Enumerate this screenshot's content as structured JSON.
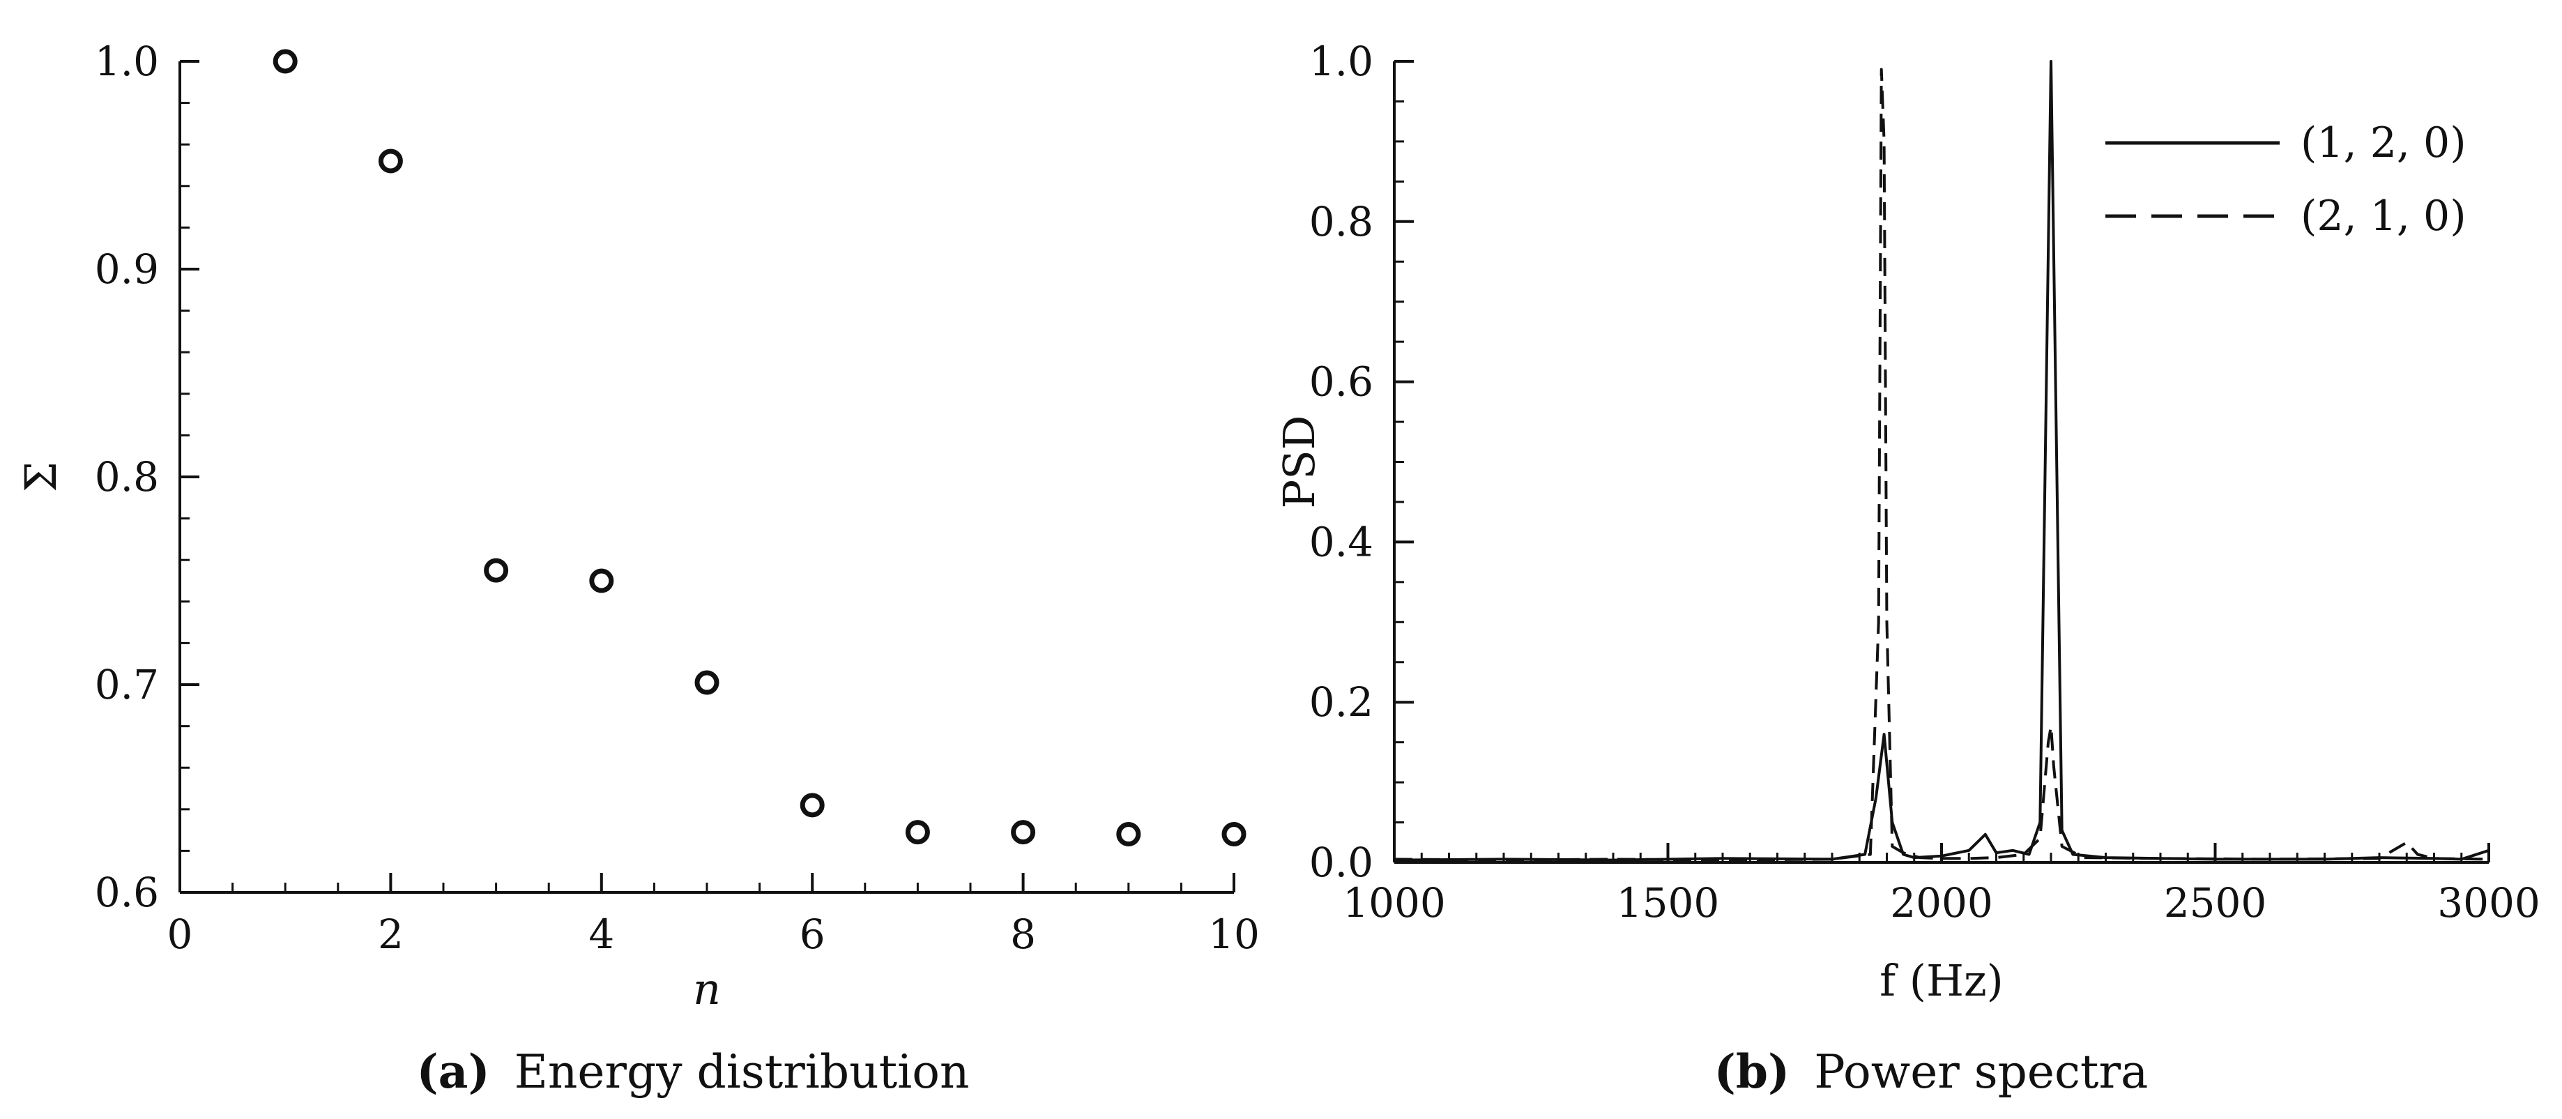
{
  "chart_data": [
    {
      "type": "scatter",
      "caption_label": "(a)",
      "caption_text": "Energy distribution",
      "xlabel": "n",
      "ylabel": "Σ",
      "xlim": [
        0,
        10
      ],
      "ylim": [
        0.6,
        1.0
      ],
      "xticks": [
        0,
        2,
        4,
        6,
        8,
        10
      ],
      "xtick_labels": [
        "0",
        "2",
        "4",
        "6",
        "8",
        "10"
      ],
      "yticks": [
        0.6,
        0.7,
        0.8,
        0.9,
        1.0
      ],
      "ytick_labels": [
        "0.6",
        "0.7",
        "0.8",
        "0.9",
        "1.0"
      ],
      "grid": false,
      "marker": "open-circle",
      "x": [
        1,
        2,
        3,
        4,
        5,
        6,
        7,
        8,
        9,
        10
      ],
      "y": [
        1.0,
        0.952,
        0.755,
        0.75,
        0.701,
        0.642,
        0.629,
        0.629,
        0.628,
        0.628
      ]
    },
    {
      "type": "line",
      "caption_label": "(b)",
      "caption_text": "Power spectra",
      "xlabel": "f (Hz)",
      "ylabel": "PSD",
      "xlim": [
        1000,
        3000
      ],
      "ylim": [
        0.0,
        1.0
      ],
      "xticks": [
        1000,
        1500,
        2000,
        2500,
        3000
      ],
      "xtick_labels": [
        "1000",
        "1500",
        "2000",
        "2500",
        "3000"
      ],
      "yticks": [
        0.0,
        0.2,
        0.4,
        0.6,
        0.8,
        1.0
      ],
      "ytick_labels": [
        "0.0",
        "0.2",
        "0.4",
        "0.6",
        "0.8",
        "1.0"
      ],
      "grid": false,
      "legend_position": "top-right",
      "series": [
        {
          "name": "(1, 2, 0)",
          "style": "solid",
          "x": [
            1000,
            1200,
            1400,
            1600,
            1800,
            1860,
            1880,
            1895,
            1910,
            1930,
            1950,
            2000,
            2050,
            2080,
            2100,
            2130,
            2160,
            2180,
            2200,
            2220,
            2240,
            2300,
            2400,
            2500,
            2600,
            2700,
            2800,
            2900,
            2950,
            3000
          ],
          "y": [
            0.003,
            0.004,
            0.003,
            0.005,
            0.004,
            0.01,
            0.08,
            0.16,
            0.05,
            0.01,
            0.006,
            0.008,
            0.015,
            0.035,
            0.012,
            0.015,
            0.01,
            0.05,
            1.0,
            0.04,
            0.01,
            0.006,
            0.005,
            0.004,
            0.004,
            0.004,
            0.006,
            0.005,
            0.004,
            0.015
          ]
        },
        {
          "name": "(2, 1, 0)",
          "style": "dashed",
          "x": [
            1000,
            1200,
            1400,
            1600,
            1800,
            1870,
            1885,
            1890,
            1895,
            1900,
            1910,
            1930,
            1960,
            2000,
            2050,
            2100,
            2150,
            2180,
            2195,
            2200,
            2205,
            2220,
            2260,
            2400,
            2600,
            2800,
            2850,
            2870,
            2900,
            3000
          ],
          "y": [
            0.004,
            0.003,
            0.004,
            0.003,
            0.004,
            0.01,
            0.3,
            0.99,
            0.9,
            0.3,
            0.02,
            0.012,
            0.006,
            0.005,
            0.005,
            0.006,
            0.01,
            0.03,
            0.15,
            0.17,
            0.12,
            0.02,
            0.006,
            0.005,
            0.004,
            0.005,
            0.025,
            0.01,
            0.005,
            0.004
          ]
        }
      ]
    }
  ]
}
